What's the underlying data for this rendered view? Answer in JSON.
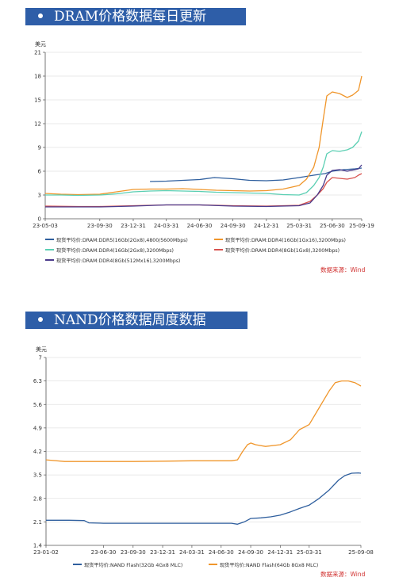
{
  "banners": {
    "dram": "DRAM价格数据每日更新",
    "nand": "NAND价格数据周度数据"
  },
  "source_label": "数据来源：Wind",
  "colors": {
    "banner_bg": "#2e5ea8",
    "source_text": "#d0302f",
    "series_blue": "#2f5f9e",
    "series_orange": "#f0962b",
    "series_green": "#5bcfb3",
    "series_red": "#d9534f",
    "series_purple": "#4b3b8c"
  },
  "chart_data": [
    {
      "type": "line",
      "ylabel": "美元",
      "ylim": [
        0,
        21
      ],
      "yticks": [
        "0",
        "3",
        "6",
        "9",
        "12",
        "15",
        "18",
        "21"
      ],
      "xlim": [
        "2023-05-03",
        "2025-09-19"
      ],
      "xticks": [
        "23-05-03",
        "23-09-30",
        "23-12-31",
        "24-03-31",
        "24-06-30",
        "24-09-30",
        "24-12-31",
        "25-03-31",
        "25-06-30",
        "25-09-19"
      ],
      "grid": "horizontal",
      "legend_position": "bottom",
      "series": [
        {
          "name": "现货平均价:DRAM:DDR5(16Gb(2Gx8),4800/5600Mbps)",
          "color": "#2f5f9e",
          "x": [
            "2024-02-15",
            "2024-03-31",
            "2024-05-15",
            "2024-06-30",
            "2024-08-10",
            "2024-09-30",
            "2024-11-15",
            "2024-12-31",
            "2025-02-15",
            "2025-03-31",
            "2025-05-10",
            "2025-06-10",
            "2025-06-30",
            "2025-07-31",
            "2025-08-31",
            "2025-09-19"
          ],
          "y": [
            4.7,
            4.75,
            4.85,
            4.95,
            5.2,
            5.05,
            4.85,
            4.8,
            4.9,
            5.2,
            5.5,
            5.7,
            6.0,
            6.2,
            6.3,
            6.4
          ]
        },
        {
          "name": "现货平均价:DRAM:DDR4(16Gb(1Gx16),3200Mbps)",
          "color": "#f0962b",
          "x": [
            "2023-05-03",
            "2023-06-15",
            "2023-08-01",
            "2023-09-30",
            "2023-11-15",
            "2023-12-31",
            "2024-02-15",
            "2024-03-31",
            "2024-05-15",
            "2024-06-30",
            "2024-08-15",
            "2024-09-30",
            "2024-11-15",
            "2024-12-31",
            "2025-02-15",
            "2025-03-31",
            "2025-04-20",
            "2025-05-10",
            "2025-05-25",
            "2025-06-05",
            "2025-06-15",
            "2025-06-30",
            "2025-07-20",
            "2025-08-10",
            "2025-08-25",
            "2025-09-10",
            "2025-09-19"
          ],
          "y": [
            3.2,
            3.1,
            3.05,
            3.1,
            3.4,
            3.7,
            3.75,
            3.75,
            3.8,
            3.7,
            3.6,
            3.55,
            3.5,
            3.55,
            3.75,
            4.2,
            5.0,
            6.5,
            9.0,
            12.5,
            15.5,
            16.0,
            15.8,
            15.3,
            15.6,
            16.2,
            18.0
          ]
        },
        {
          "name": "现货平均价:DRAM:DDR4(16Gb(2Gx8),3200Mbps)",
          "color": "#5bcfb3",
          "x": [
            "2023-05-03",
            "2023-06-15",
            "2023-08-01",
            "2023-09-30",
            "2023-11-15",
            "2023-12-31",
            "2024-02-15",
            "2024-03-31",
            "2024-05-15",
            "2024-06-30",
            "2024-08-15",
            "2024-09-30",
            "2024-11-15",
            "2024-12-31",
            "2025-02-15",
            "2025-03-31",
            "2025-04-20",
            "2025-05-10",
            "2025-05-25",
            "2025-06-05",
            "2025-06-15",
            "2025-06-30",
            "2025-07-20",
            "2025-08-10",
            "2025-08-25",
            "2025-09-10",
            "2025-09-19"
          ],
          "y": [
            3.0,
            3.0,
            2.95,
            3.0,
            3.15,
            3.4,
            3.5,
            3.55,
            3.5,
            3.45,
            3.35,
            3.3,
            3.25,
            3.2,
            3.05,
            3.0,
            3.3,
            4.2,
            5.2,
            6.5,
            8.2,
            8.6,
            8.5,
            8.7,
            9.0,
            9.8,
            11.0
          ]
        },
        {
          "name": "现货平均价:DRAM:DDR4(8Gb(1Gx8),3200Mbps)",
          "color": "#d9534f",
          "x": [
            "2023-05-03",
            "2023-08-01",
            "2023-09-30",
            "2023-12-31",
            "2024-03-31",
            "2024-06-30",
            "2024-09-30",
            "2024-12-31",
            "2025-03-31",
            "2025-04-30",
            "2025-05-20",
            "2025-06-05",
            "2025-06-15",
            "2025-06-30",
            "2025-07-20",
            "2025-08-10",
            "2025-08-31",
            "2025-09-10",
            "2025-09-19"
          ],
          "y": [
            1.6,
            1.55,
            1.55,
            1.65,
            1.75,
            1.75,
            1.65,
            1.6,
            1.7,
            2.2,
            3.0,
            3.8,
            4.6,
            5.2,
            5.1,
            5.0,
            5.2,
            5.5,
            5.7
          ]
        },
        {
          "name": "现货平均价:DRAM:DDR4(8Gb(512Mx16),3200Mbps)",
          "color": "#4b3b8c",
          "x": [
            "2023-05-03",
            "2023-08-01",
            "2023-09-30",
            "2023-12-31",
            "2024-03-31",
            "2024-06-30",
            "2024-09-30",
            "2024-12-31",
            "2025-03-31",
            "2025-04-30",
            "2025-05-20",
            "2025-06-05",
            "2025-06-15",
            "2025-06-30",
            "2025-07-20",
            "2025-08-10",
            "2025-08-31",
            "2025-09-10",
            "2025-09-19"
          ],
          "y": [
            1.5,
            1.5,
            1.5,
            1.6,
            1.75,
            1.75,
            1.6,
            1.55,
            1.65,
            2.0,
            3.0,
            4.2,
            5.5,
            6.1,
            6.2,
            6.0,
            6.2,
            6.3,
            6.8
          ]
        }
      ]
    },
    {
      "type": "line",
      "ylabel": "美元",
      "ylim": [
        1.4,
        7
      ],
      "yticks": [
        "1.4",
        "2.1",
        "2.8",
        "3.5",
        "4.2",
        "4.9",
        "5.6",
        "6.3",
        "7"
      ],
      "xlim": [
        "2023-01-02",
        "2025-09-08"
      ],
      "xticks": [
        "23-01-02",
        "23-06-30",
        "23-09-30",
        "23-12-31",
        "24-03-31",
        "24-06-30",
        "24-09-30",
        "24-12-31",
        "25-03-31",
        "25-09-08"
      ],
      "grid": "horizontal",
      "legend_position": "bottom",
      "series": [
        {
          "name": "现货平均价:NAND Flash(32Gb 4Gx8 MLC)",
          "color": "#2f5f9e",
          "x": [
            "2023-01-02",
            "2023-03-15",
            "2023-05-01",
            "2023-05-15",
            "2023-06-30",
            "2023-09-30",
            "2023-12-31",
            "2024-03-31",
            "2024-06-30",
            "2024-08-01",
            "2024-08-20",
            "2024-09-10",
            "2024-09-30",
            "2024-11-01",
            "2024-12-01",
            "2024-12-31",
            "2025-02-01",
            "2025-03-01",
            "2025-03-31",
            "2025-05-01",
            "2025-06-01",
            "2025-07-01",
            "2025-07-20",
            "2025-08-10",
            "2025-08-31",
            "2025-09-08"
          ],
          "y": [
            2.15,
            2.15,
            2.14,
            2.07,
            2.06,
            2.06,
            2.06,
            2.06,
            2.06,
            2.06,
            2.03,
            2.1,
            2.2,
            2.22,
            2.25,
            2.3,
            2.4,
            2.5,
            2.6,
            2.8,
            3.05,
            3.35,
            3.48,
            3.55,
            3.56,
            3.55
          ]
        },
        {
          "name": "现货平均价:NAND Flash(64Gb 8Gx8 MLC)",
          "color": "#f0962b",
          "x": [
            "2023-01-02",
            "2023-03-01",
            "2023-05-01",
            "2023-06-30",
            "2023-09-30",
            "2023-12-31",
            "2024-03-31",
            "2024-06-30",
            "2024-08-01",
            "2024-08-20",
            "2024-09-05",
            "2024-09-20",
            "2024-09-30",
            "2024-10-15",
            "2024-11-15",
            "2024-12-31",
            "2025-02-01",
            "2025-03-01",
            "2025-03-31",
            "2025-05-01",
            "2025-06-01",
            "2025-06-20",
            "2025-07-10",
            "2025-07-31",
            "2025-08-20",
            "2025-09-08"
          ],
          "y": [
            3.95,
            3.9,
            3.9,
            3.9,
            3.9,
            3.91,
            3.92,
            3.92,
            3.92,
            3.95,
            4.2,
            4.4,
            4.45,
            4.4,
            4.35,
            4.4,
            4.55,
            4.85,
            5.0,
            5.5,
            6.0,
            6.25,
            6.3,
            6.3,
            6.25,
            6.15
          ]
        }
      ]
    }
  ]
}
